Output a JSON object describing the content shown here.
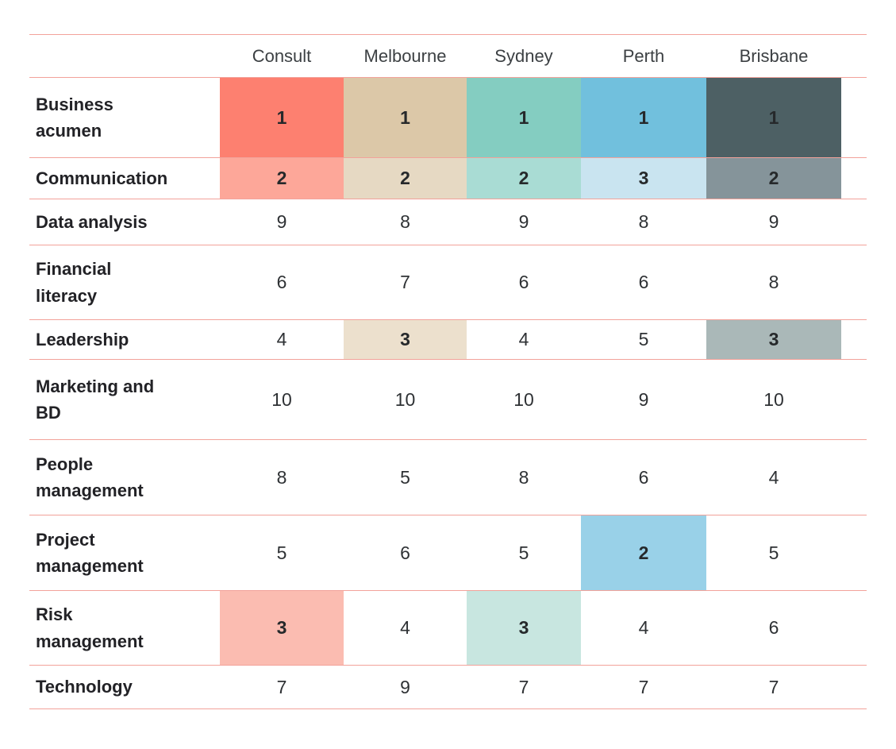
{
  "table": {
    "row_labels": [
      "Business\nacumen",
      "Communication",
      "Data analysis",
      "Financial\nliteracy",
      "Leadership",
      "Marketing and\nBD",
      "People\nmanagement",
      "Project\nmanagement",
      "Risk\nmanagement",
      "Technology"
    ]
  },
  "colors": {
    "divider": "#F2A29A",
    "consult_rank1": "#FD8070",
    "consult_rank2": "#FDA799",
    "consult_rank3": "#FBBCB1",
    "melbourne_rank1": "#DCC8A8",
    "melbourne_rank2": "#E6D9C3",
    "melbourne_rank3": "#ECE0CD",
    "sydney_rank1": "#84CDC1",
    "sydney_rank2": "#A9DCD4",
    "sydney_rank3": "#C8E6E0",
    "perth_rank1": "#71C0DD",
    "perth_rank2": "#99D1E8",
    "perth_rank3": "#C9E4F0",
    "brisbane_rank1": "#4D6064",
    "brisbane_rank2": "#85949A",
    "brisbane_rank3": "#AAB8B8"
  },
  "chart_data": {
    "type": "heatmap",
    "columns": [
      "Consult",
      "Melbourne",
      "Sydney",
      "Perth",
      "Brisbane"
    ],
    "rows": [
      "Business acumen",
      "Communication",
      "Data analysis",
      "Financial literacy",
      "Leadership",
      "Marketing and BD",
      "People management",
      "Project management",
      "Risk management",
      "Technology"
    ],
    "values": [
      [
        1,
        1,
        1,
        1,
        1
      ],
      [
        2,
        2,
        2,
        3,
        2
      ],
      [
        9,
        8,
        9,
        8,
        9
      ],
      [
        6,
        7,
        6,
        6,
        8
      ],
      [
        4,
        3,
        4,
        5,
        3
      ],
      [
        10,
        10,
        10,
        9,
        10
      ],
      [
        8,
        5,
        8,
        6,
        4
      ],
      [
        5,
        6,
        5,
        2,
        5
      ],
      [
        3,
        4,
        3,
        4,
        6
      ],
      [
        7,
        9,
        7,
        7,
        7
      ]
    ],
    "cell_colors": [
      [
        "#FD8070",
        "#DCC8A8",
        "#84CDC1",
        "#71C0DD",
        "#4D6064"
      ],
      [
        "#FDA799",
        "#E6D9C3",
        "#A9DCD4",
        "#C9E4F0",
        "#85949A"
      ],
      [
        null,
        null,
        null,
        null,
        null
      ],
      [
        null,
        null,
        null,
        null,
        null
      ],
      [
        null,
        "#ECE0CD",
        null,
        null,
        "#AAB8B8"
      ],
      [
        null,
        null,
        null,
        null,
        null
      ],
      [
        null,
        null,
        null,
        null,
        null
      ],
      [
        null,
        null,
        null,
        "#99D1E8",
        null
      ],
      [
        "#FBBCB1",
        null,
        "#C8E6E0",
        null,
        null
      ],
      [
        null,
        null,
        null,
        null,
        null
      ]
    ],
    "value_meaning": "rank 1-10 per column",
    "highlight_meaning": "ranks 1-3 shaded in each column's color, rank 1 darkest",
    "legend_position": "none",
    "grid": "horizontal pink dividers only"
  }
}
